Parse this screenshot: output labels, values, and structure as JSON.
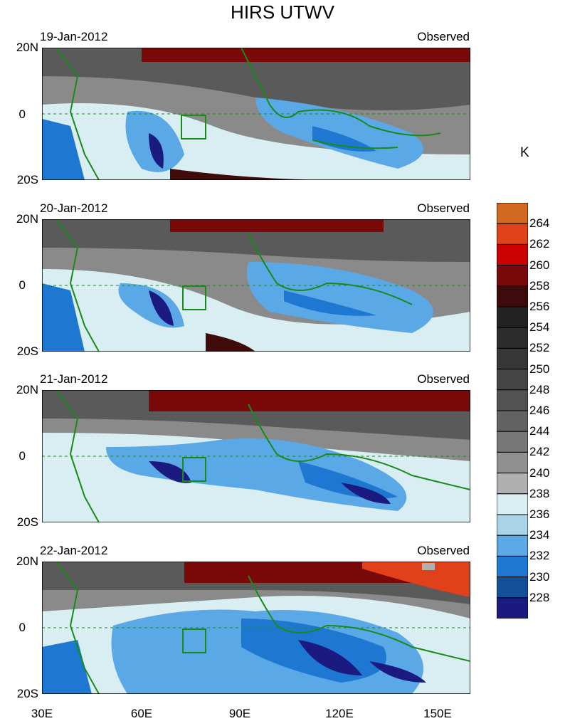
{
  "title": "HIRS UTWV",
  "panels": [
    {
      "date": "19-Jan-2012",
      "tag": "Observed"
    },
    {
      "date": "20-Jan-2012",
      "tag": "Observed"
    },
    {
      "date": "21-Jan-2012",
      "tag": "Observed"
    },
    {
      "date": "22-Jan-2012",
      "tag": "Observed"
    }
  ],
  "lat_labels": [
    "20N",
    "0",
    "20S"
  ],
  "lon_labels": [
    "30E",
    "60E",
    "90E",
    "120E",
    "150E"
  ],
  "colorbar": {
    "unit": "K",
    "labels": [
      "264",
      "262",
      "260",
      "258",
      "256",
      "254",
      "252",
      "250",
      "248",
      "246",
      "244",
      "242",
      "240",
      "238",
      "236",
      "234",
      "232",
      "230",
      "228"
    ],
    "colors": [
      "#d2691e",
      "#e0401a",
      "#cc0000",
      "#7a0a0a",
      "#3e0a0a",
      "#222222",
      "#2c2c2c",
      "#363636",
      "#444444",
      "#525252",
      "#626262",
      "#777777",
      "#909090",
      "#b0b0b0",
      "#d8eef2",
      "#a9d3e6",
      "#5aa9e6",
      "#1e78d2",
      "#145098",
      "#1a1a80"
    ]
  }
}
